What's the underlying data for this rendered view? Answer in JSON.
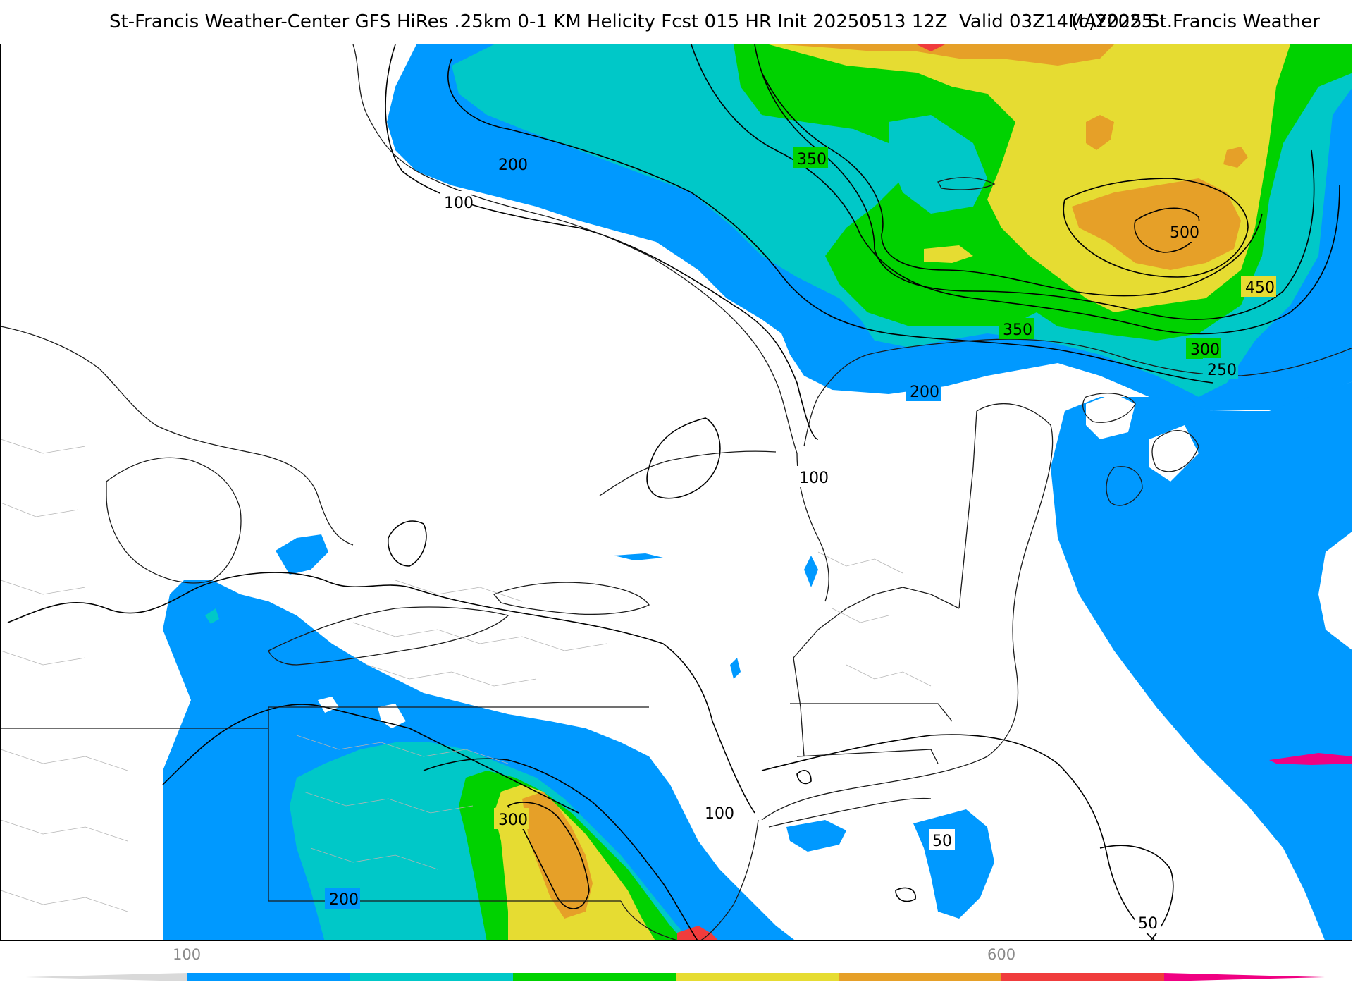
{
  "header": {
    "title": "St-Francis Weather-Center GFS HiRes .25km 0-1 KM Helicity Fcst 015 HR Init 20250513 12Z  Valid 03Z14MAY2025",
    "copyright": "(c)2025 St.Francis Weather"
  },
  "contour_labels": [
    "200",
    "100",
    "350",
    "500",
    "450",
    "350",
    "300",
    "250",
    "200",
    "100",
    "300",
    "100",
    "200",
    "50",
    "50"
  ],
  "colorbar": {
    "tick_labels": [
      "100",
      "600"
    ],
    "colors": [
      "#d9d9d9",
      "#0099ff",
      "#00c8c8",
      "#00d200",
      "#e6dc32",
      "#e6a028",
      "#f03c3c",
      "#f00082"
    ]
  },
  "palette": {
    "light_blue": "#0099ff",
    "cyan": "#00c8c8",
    "green": "#00d200",
    "yellow": "#e6dc32",
    "orange": "#e6a028",
    "red": "#f03c3c"
  }
}
